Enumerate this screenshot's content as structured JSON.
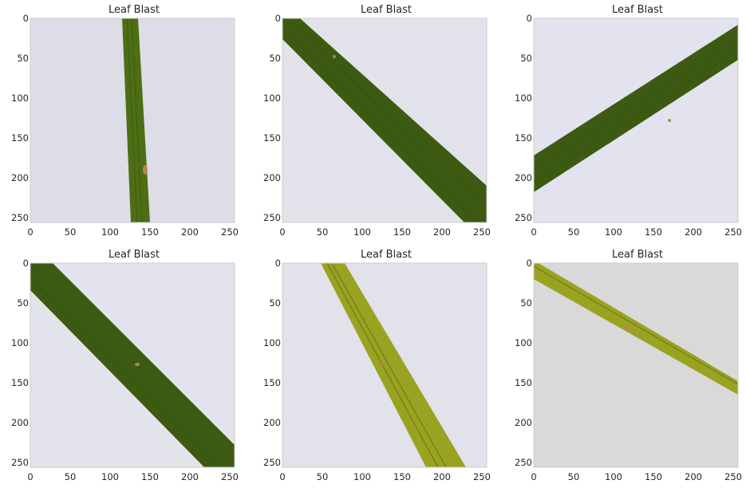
{
  "figure": {
    "panels": [
      {
        "title": "Leaf Blast",
        "variant": 0
      },
      {
        "title": "Leaf Blast",
        "variant": 1
      },
      {
        "title": "Leaf Blast",
        "variant": 2
      },
      {
        "title": "Leaf Blast",
        "variant": 3
      },
      {
        "title": "Leaf Blast",
        "variant": 4
      },
      {
        "title": "Leaf Blast",
        "variant": 5
      }
    ],
    "y_ticks": [
      "0",
      "50",
      "100",
      "150",
      "200",
      "250"
    ],
    "x_ticks": [
      "0",
      "50",
      "100",
      "150",
      "200",
      "250"
    ],
    "image_extent": [
      0,
      256
    ],
    "colors": {
      "background": "#dfe0e8",
      "leaf_dark": "#3d5a12",
      "leaf_mid": "#4d6e14",
      "leaf_yellow": "#9aa221",
      "spot": "#b08a4a",
      "frame": "#cccccc"
    }
  }
}
